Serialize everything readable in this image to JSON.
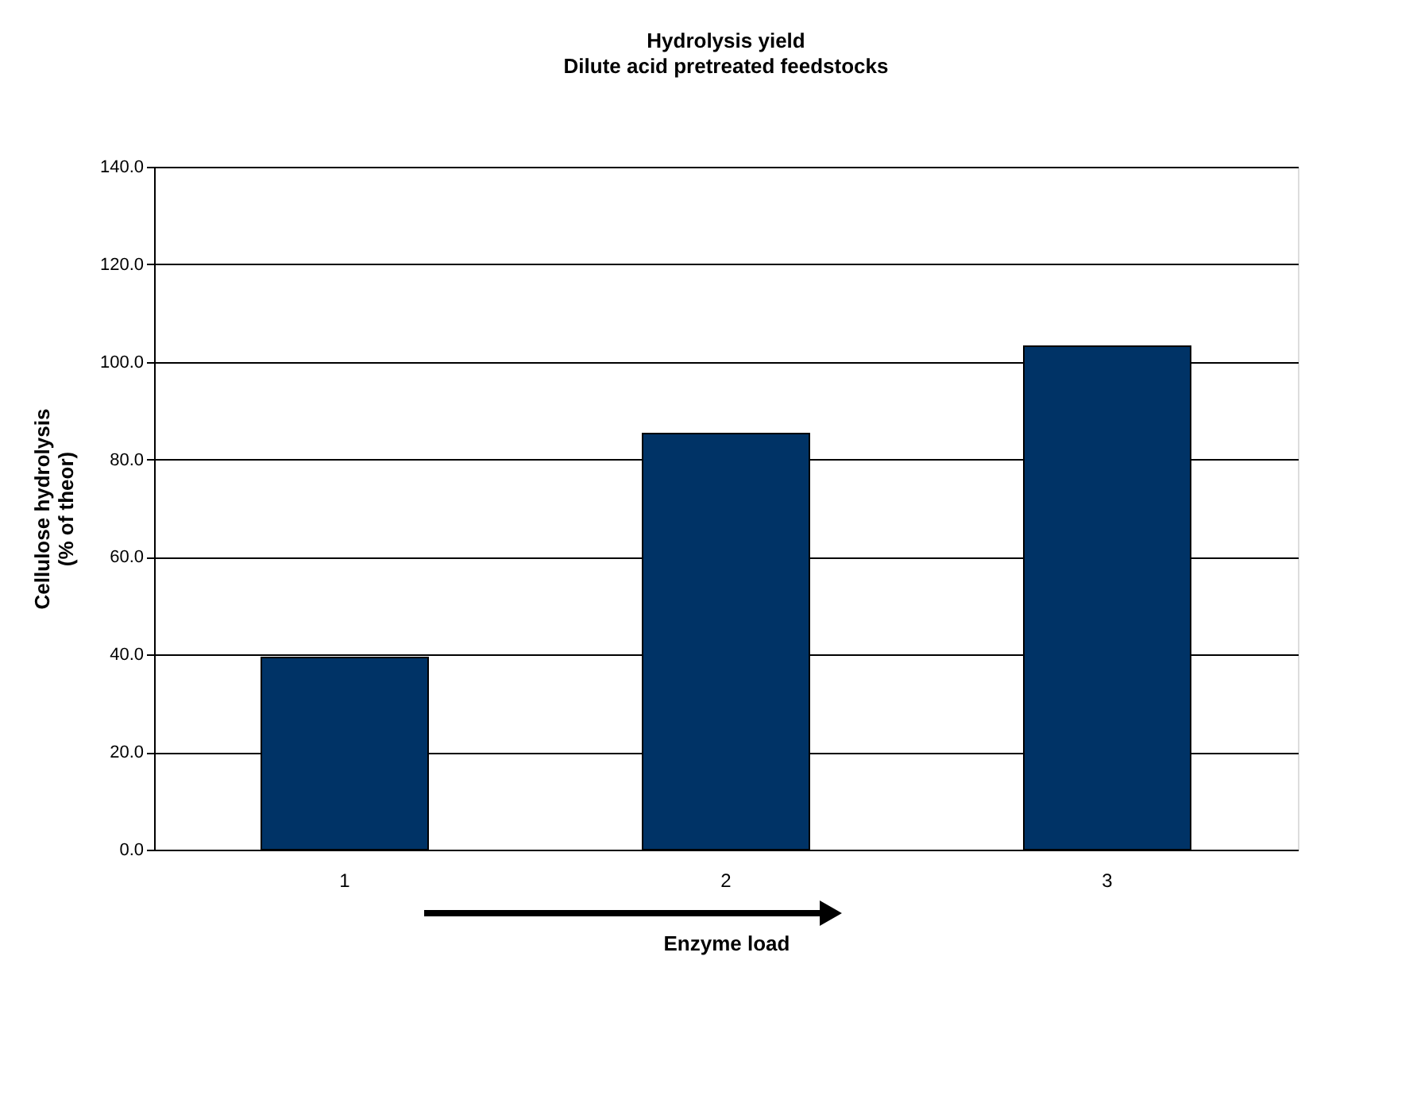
{
  "chart_data": {
    "type": "bar",
    "title": "Hydrolysis yield",
    "subtitle": "Dilute acid pretreated feedstocks",
    "xlabel": "Enzyme load",
    "ylabel": "Cellulose hydrolysis\n(% of theor)",
    "categories": [
      "1",
      "2",
      "3"
    ],
    "values": [
      39.4,
      85.3,
      103.2
    ],
    "color": "#003366",
    "ylim": [
      0,
      140
    ],
    "yticks": [
      {
        "value": 0,
        "label": "0.0"
      },
      {
        "value": 20,
        "label": "20.0"
      },
      {
        "value": 40,
        "label": "40.0"
      },
      {
        "value": 60,
        "label": "60.0"
      },
      {
        "value": 80,
        "label": "80.0"
      },
      {
        "value": 100,
        "label": "100.0"
      },
      {
        "value": 120,
        "label": "120.0"
      },
      {
        "value": 140,
        "label": "140.0"
      }
    ],
    "grid": "y"
  }
}
